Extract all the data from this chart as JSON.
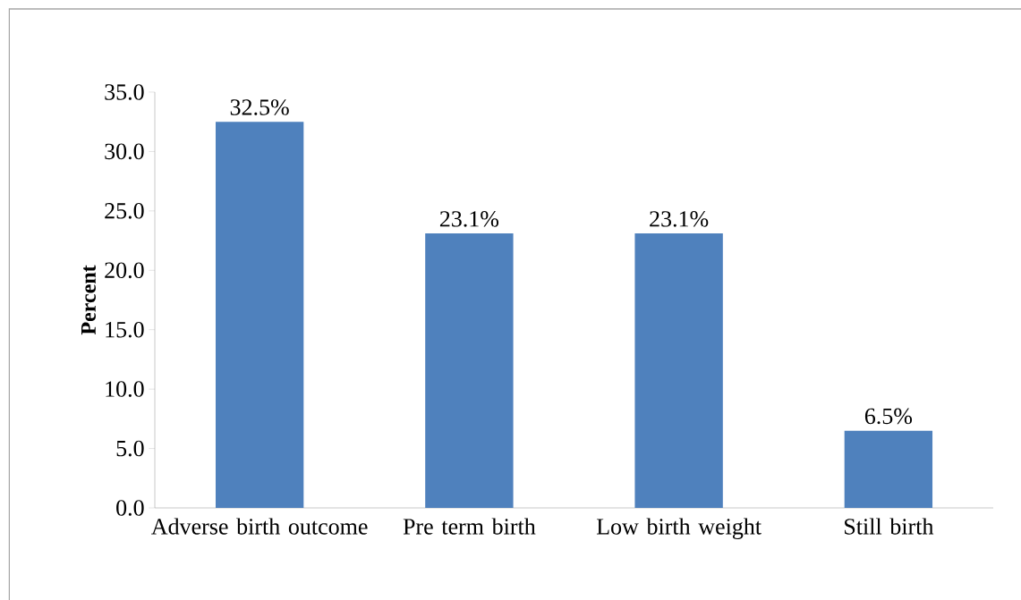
{
  "chart_data": {
    "type": "bar",
    "ylabel": "Percent",
    "categories": [
      "Adverse birth outcome",
      "Pre term birth",
      "Low birth weight",
      "Still birth"
    ],
    "values": [
      32.5,
      23.1,
      23.1,
      6.5
    ],
    "value_labels": [
      "32.5%",
      "23.1%",
      "23.1%",
      "6.5%"
    ],
    "color": "#4f81bd",
    "ylim": [
      0,
      35
    ],
    "yticks": [
      {
        "value": 0,
        "label": "0.0"
      },
      {
        "value": 5,
        "label": "5.0"
      },
      {
        "value": 10,
        "label": "10.0"
      },
      {
        "value": 15,
        "label": "15.0"
      },
      {
        "value": 20,
        "label": "20.0"
      },
      {
        "value": 25,
        "label": "25.0"
      },
      {
        "value": 30,
        "label": "30.0"
      },
      {
        "value": 35,
        "label": "35.0"
      }
    ],
    "grid": false
  }
}
